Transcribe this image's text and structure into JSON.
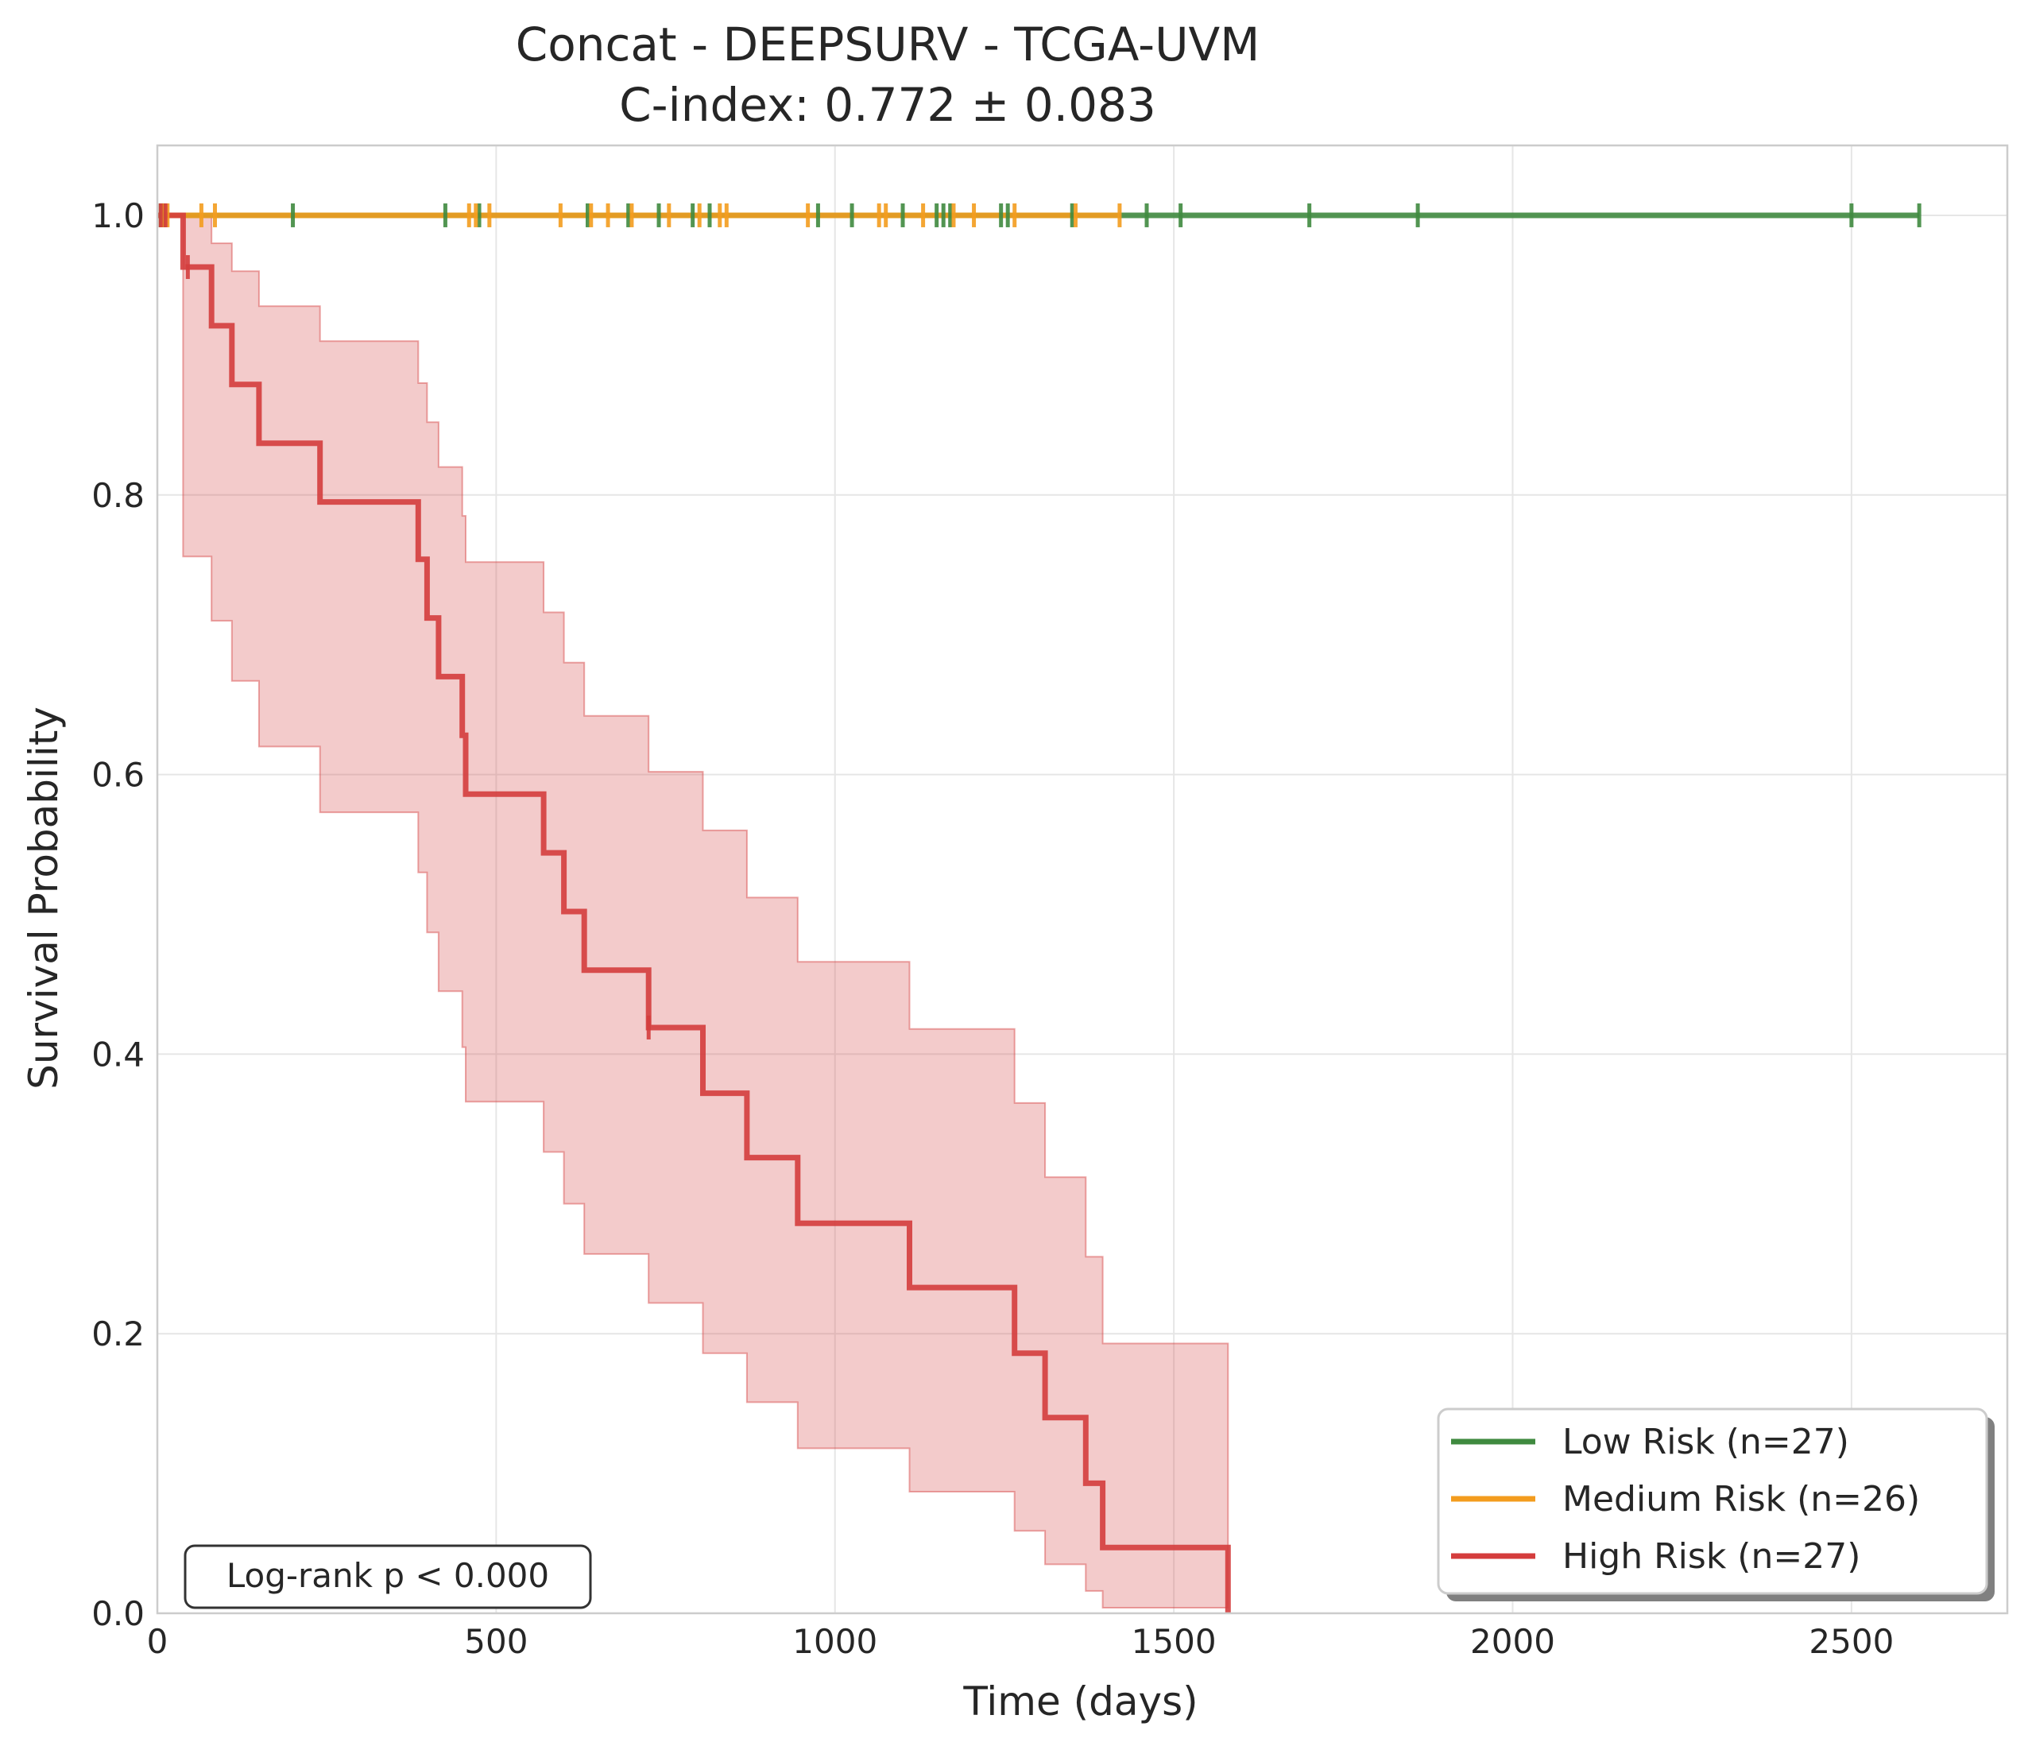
{
  "chart_data": {
    "type": "line",
    "title_line1": "Concat - DEEPSURV - TCGA-UVM",
    "title_line2": "C-index: 0.772 ± 0.083",
    "xlabel": "Time (days)",
    "ylabel": "Survival Probability",
    "xlim": [
      0,
      2730
    ],
    "ylim": [
      0,
      1.05
    ],
    "xticks": [
      0,
      500,
      1000,
      1500,
      2000,
      2500
    ],
    "yticks": [
      0.0,
      0.2,
      0.4,
      0.6,
      0.8,
      1.0
    ],
    "xtick_labels": [
      "0",
      "500",
      "1000",
      "1500",
      "2000",
      "2500"
    ],
    "ytick_labels": [
      "0.0",
      "0.2",
      "0.4",
      "0.6",
      "0.8",
      "1.0"
    ],
    "grid": true,
    "legend_position": "bottom-right",
    "annotation": "Log-rank p < 0.000",
    "series": [
      {
        "name": "Low Risk (n=27)",
        "color": "#3f8a3f",
        "steps": [
          [
            0,
            1.0
          ],
          [
            2600,
            1.0
          ]
        ],
        "censor_times": [
          5,
          10,
          200,
          425,
          475,
          635,
          695,
          740,
          790,
          815,
          975,
          1025,
          1100,
          1150,
          1160,
          1170,
          1245,
          1255,
          1350,
          1460,
          1510,
          1700,
          1860,
          2500,
          2600
        ]
      },
      {
        "name": "Medium Risk (n=26)",
        "color": "#f39c1e",
        "steps": [
          [
            0,
            1.0
          ],
          [
            1420,
            1.0
          ]
        ],
        "censor_times": [
          8,
          15,
          65,
          85,
          460,
          470,
          490,
          595,
          640,
          665,
          700,
          755,
          800,
          830,
          840,
          960,
          1065,
          1075,
          1130,
          1175,
          1205,
          1265,
          1355,
          1420
        ]
      },
      {
        "name": "High Risk (n=27)",
        "color": "#d43d3d",
        "steps": [
          [
            0,
            1.0
          ],
          [
            38,
            0.963
          ],
          [
            80,
            0.921
          ],
          [
            110,
            0.879
          ],
          [
            150,
            0.837
          ],
          [
            240,
            0.795
          ],
          [
            385,
            0.754
          ],
          [
            398,
            0.712
          ],
          [
            415,
            0.67
          ],
          [
            450,
            0.628
          ],
          [
            455,
            0.586
          ],
          [
            570,
            0.544
          ],
          [
            600,
            0.502
          ],
          [
            630,
            0.46
          ],
          [
            725,
            0.419
          ],
          [
            805,
            0.372
          ],
          [
            870,
            0.326
          ],
          [
            945,
            0.279
          ],
          [
            1110,
            0.233
          ],
          [
            1265,
            0.186
          ],
          [
            1310,
            0.14
          ],
          [
            1370,
            0.093
          ],
          [
            1395,
            0.047
          ],
          [
            1580,
            0.0
          ]
        ],
        "ci_upper": [
          [
            0,
            1.0
          ],
          [
            38,
            1.0
          ],
          [
            80,
            0.98
          ],
          [
            110,
            0.96
          ],
          [
            150,
            0.935
          ],
          [
            240,
            0.91
          ],
          [
            385,
            0.88
          ],
          [
            398,
            0.852
          ],
          [
            415,
            0.82
          ],
          [
            450,
            0.785
          ],
          [
            455,
            0.752
          ],
          [
            570,
            0.716
          ],
          [
            600,
            0.68
          ],
          [
            630,
            0.642
          ],
          [
            725,
            0.602
          ],
          [
            805,
            0.56
          ],
          [
            870,
            0.512
          ],
          [
            945,
            0.466
          ],
          [
            1110,
            0.418
          ],
          [
            1265,
            0.365
          ],
          [
            1310,
            0.312
          ],
          [
            1370,
            0.255
          ],
          [
            1395,
            0.193
          ],
          [
            1580,
            0.193
          ]
        ],
        "ci_lower": [
          [
            0,
            1.0
          ],
          [
            38,
            0.756
          ],
          [
            80,
            0.71
          ],
          [
            110,
            0.667
          ],
          [
            150,
            0.62
          ],
          [
            240,
            0.573
          ],
          [
            385,
            0.53
          ],
          [
            398,
            0.487
          ],
          [
            415,
            0.445
          ],
          [
            450,
            0.405
          ],
          [
            455,
            0.366
          ],
          [
            570,
            0.33
          ],
          [
            600,
            0.293
          ],
          [
            630,
            0.257
          ],
          [
            725,
            0.222
          ],
          [
            805,
            0.186
          ],
          [
            870,
            0.151
          ],
          [
            945,
            0.118
          ],
          [
            1110,
            0.087
          ],
          [
            1265,
            0.059
          ],
          [
            1310,
            0.035
          ],
          [
            1370,
            0.016
          ],
          [
            1395,
            0.004
          ],
          [
            1580,
            0.004
          ]
        ],
        "censor_times": [
          5,
          12,
          45,
          725
        ]
      }
    ]
  }
}
